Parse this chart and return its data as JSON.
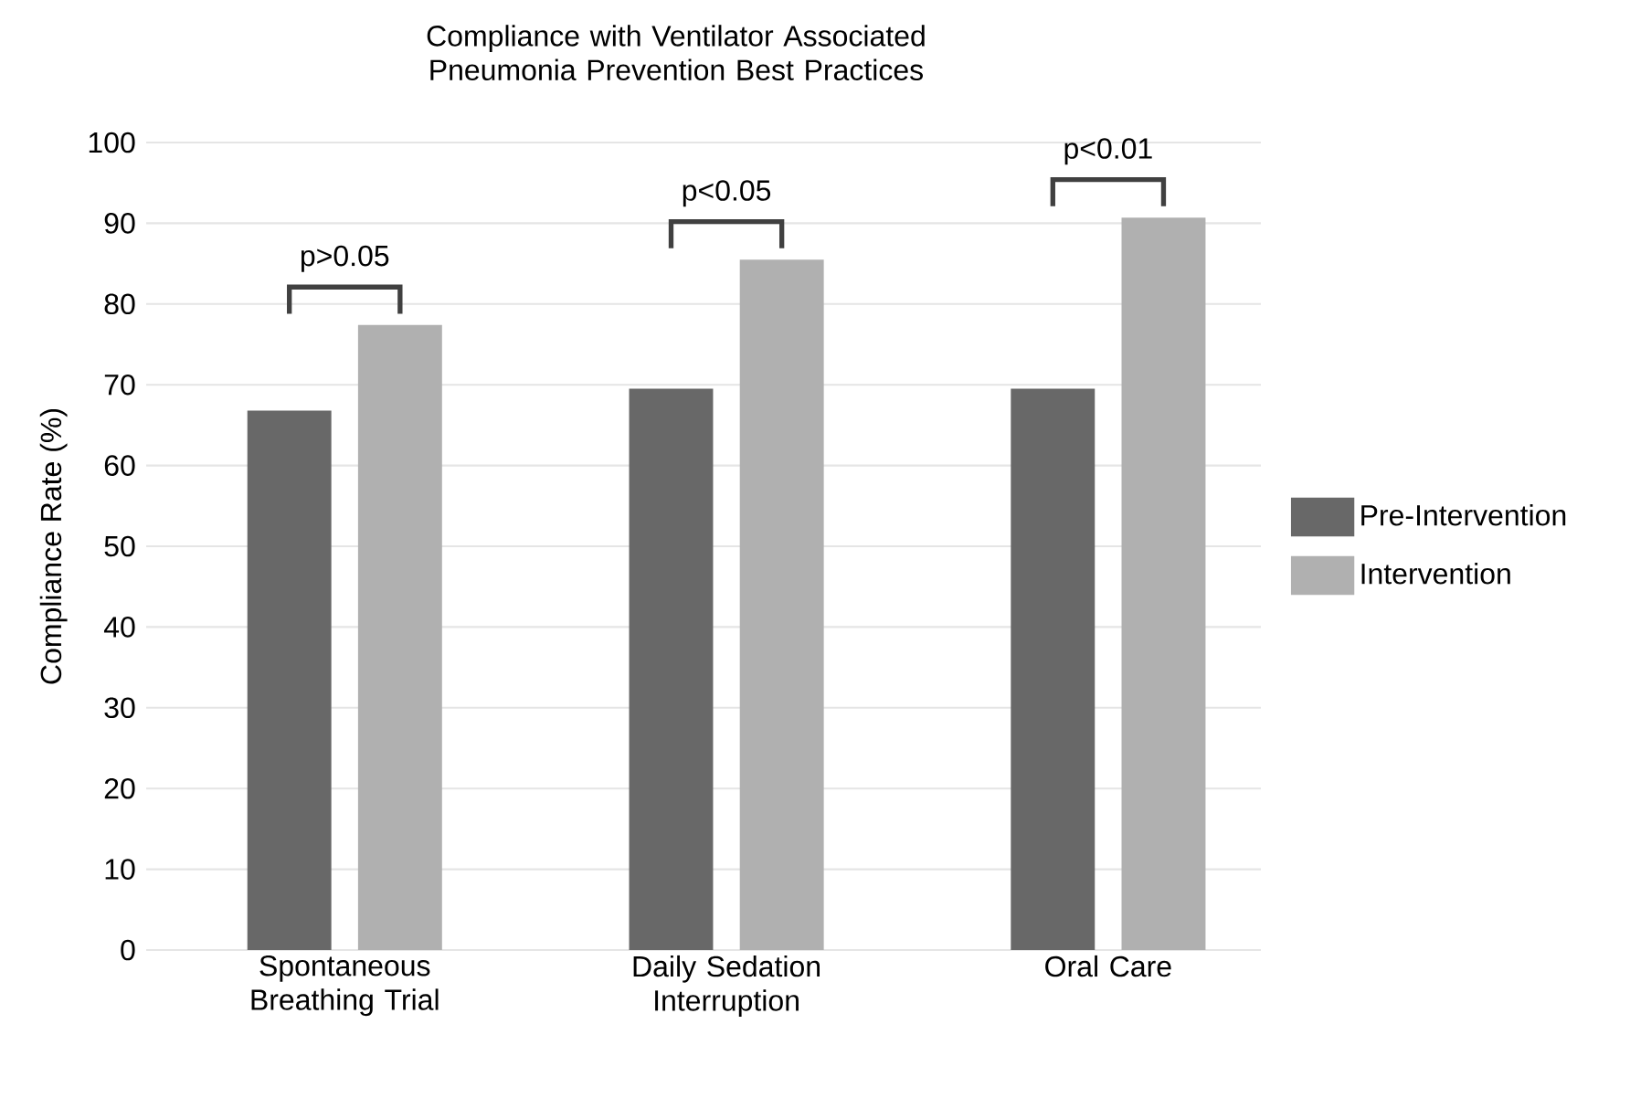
{
  "chart_data": {
    "type": "bar",
    "title": "Compliance with Ventilator Associated Pneumonia Prevention Best Practices",
    "ylabel": "Compliance Rate (%)",
    "categories": [
      "Spontaneous Breathing Trial",
      "Daily Sedation Interruption",
      "Oral Care"
    ],
    "series": [
      {
        "name": "Pre-Intervention",
        "color": "#686868",
        "values": [
          66.8,
          69.5,
          69.5
        ]
      },
      {
        "name": "Intervention",
        "color": "#b0b0b0",
        "values": [
          77.4,
          85.5,
          90.7
        ]
      }
    ],
    "annotations": [
      "p>0.05",
      "p<0.05",
      "p<0.01"
    ],
    "ylim": [
      0,
      100
    ],
    "yticks": [
      0,
      10,
      20,
      30,
      40,
      50,
      60,
      70,
      80,
      90,
      100
    ],
    "grid": "y",
    "legend": "right"
  }
}
